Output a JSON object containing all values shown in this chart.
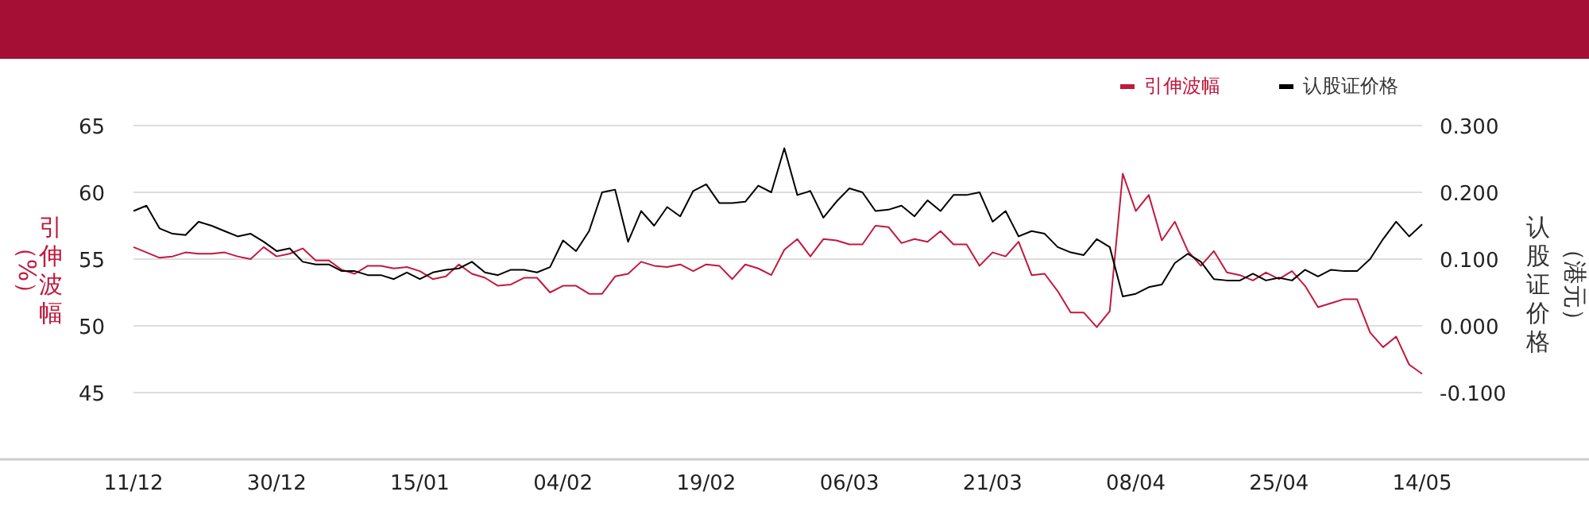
{
  "chart_data": {
    "type": "line",
    "categories": [
      "11/12",
      null,
      null,
      null,
      null,
      null,
      null,
      null,
      null,
      null,
      null,
      "30/12",
      null,
      null,
      null,
      null,
      null,
      null,
      null,
      null,
      null,
      null,
      "15/01",
      null,
      null,
      null,
      null,
      null,
      null,
      null,
      null,
      null,
      null,
      "04/02",
      null,
      null,
      null,
      null,
      null,
      null,
      null,
      null,
      null,
      null,
      "19/02",
      null,
      null,
      null,
      null,
      null,
      null,
      null,
      null,
      null,
      null,
      "06/03",
      null,
      null,
      null,
      null,
      null,
      null,
      null,
      null,
      null,
      null,
      "21/03",
      null,
      null,
      null,
      null,
      null,
      null,
      null,
      null,
      null,
      null,
      "08/04",
      null,
      null,
      null,
      null,
      null,
      null,
      null,
      null,
      null,
      null,
      "25/04",
      null,
      null,
      null,
      null,
      null,
      null,
      null,
      null,
      null,
      null,
      "14/05"
    ],
    "series": [
      {
        "name": "引伸波幅",
        "color": "#c0193f",
        "values": [
          55.9,
          55.5,
          55.1,
          55.2,
          55.5,
          55.4,
          55.4,
          55.5,
          55.2,
          55.0,
          55.9,
          55.2,
          55.4,
          55.8,
          54.9,
          54.9,
          54.2,
          53.9,
          54.5,
          54.5,
          54.3,
          54.4,
          54.1,
          53.5,
          53.7,
          54.6,
          53.9,
          53.6,
          53.0,
          53.1,
          53.6,
          53.6,
          52.5,
          53.0,
          53.0,
          52.4,
          52.4,
          53.7,
          53.9,
          54.8,
          54.5,
          54.4,
          54.6,
          54.1,
          54.6,
          54.5,
          53.5,
          54.6,
          54.3,
          53.8,
          55.7,
          56.5,
          55.2,
          56.5,
          56.4,
          56.1,
          56.1,
          57.5,
          57.4,
          56.2,
          56.5,
          56.3,
          57.1,
          56.1,
          56.1,
          54.5,
          55.5,
          55.2,
          56.3,
          53.8,
          53.9,
          52.6,
          51.0,
          51.0,
          49.9,
          51.1,
          61.4,
          58.6,
          59.8,
          56.4,
          57.8,
          55.6,
          54.5,
          55.6,
          54.0,
          53.8,
          53.4,
          54.0,
          53.5,
          54.1,
          53.0,
          51.4,
          51.7,
          52.0,
          52.0,
          49.5,
          48.4,
          49.2,
          47.1,
          46.4
        ]
      },
      {
        "name": "认股证价格",
        "color": "#000000",
        "axis": "y2",
        "values": [
          0.172,
          0.18,
          0.146,
          0.138,
          0.136,
          0.156,
          0.15,
          0.142,
          0.134,
          0.138,
          0.126,
          0.112,
          0.116,
          0.096,
          0.092,
          0.092,
          0.082,
          0.082,
          0.076,
          0.076,
          0.07,
          0.08,
          0.07,
          0.08,
          0.084,
          0.086,
          0.096,
          0.08,
          0.076,
          0.084,
          0.084,
          0.08,
          0.088,
          0.128,
          0.112,
          0.142,
          0.2,
          0.204,
          0.126,
          0.172,
          0.15,
          0.178,
          0.164,
          0.202,
          0.212,
          0.184,
          0.184,
          0.186,
          0.21,
          0.2,
          0.266,
          0.196,
          0.202,
          0.162,
          0.186,
          0.206,
          0.2,
          0.172,
          0.174,
          0.18,
          0.164,
          0.188,
          0.172,
          0.196,
          0.196,
          0.2,
          0.156,
          0.172,
          0.134,
          0.142,
          0.138,
          0.118,
          0.11,
          0.106,
          0.13,
          0.118,
          0.044,
          0.048,
          0.058,
          0.062,
          0.094,
          0.108,
          0.096,
          0.07,
          0.068,
          0.068,
          0.078,
          0.068,
          0.072,
          0.068,
          0.084,
          0.074,
          0.084,
          0.082,
          0.082,
          0.1,
          0.13,
          0.156,
          0.134,
          0.152
        ]
      }
    ],
    "ylabel": "引伸波幅（%）",
    "y2label": "认股证价格（港元）",
    "ylim": [
      40,
      65
    ],
    "yticks": [
      45,
      50,
      55,
      60,
      65
    ],
    "y2lim": [
      -0.2,
      0.3
    ],
    "y2ticks": [
      {
        "value": -0.1,
        "label": "-0.100"
      },
      {
        "value": 0,
        "label": "0.000"
      },
      {
        "value": 0.1,
        "label": "0.100"
      },
      {
        "value": 0.2,
        "label": "0.200"
      },
      {
        "value": 0.3,
        "label": "0.300"
      }
    ],
    "grid": "y",
    "legend": "top right"
  }
}
